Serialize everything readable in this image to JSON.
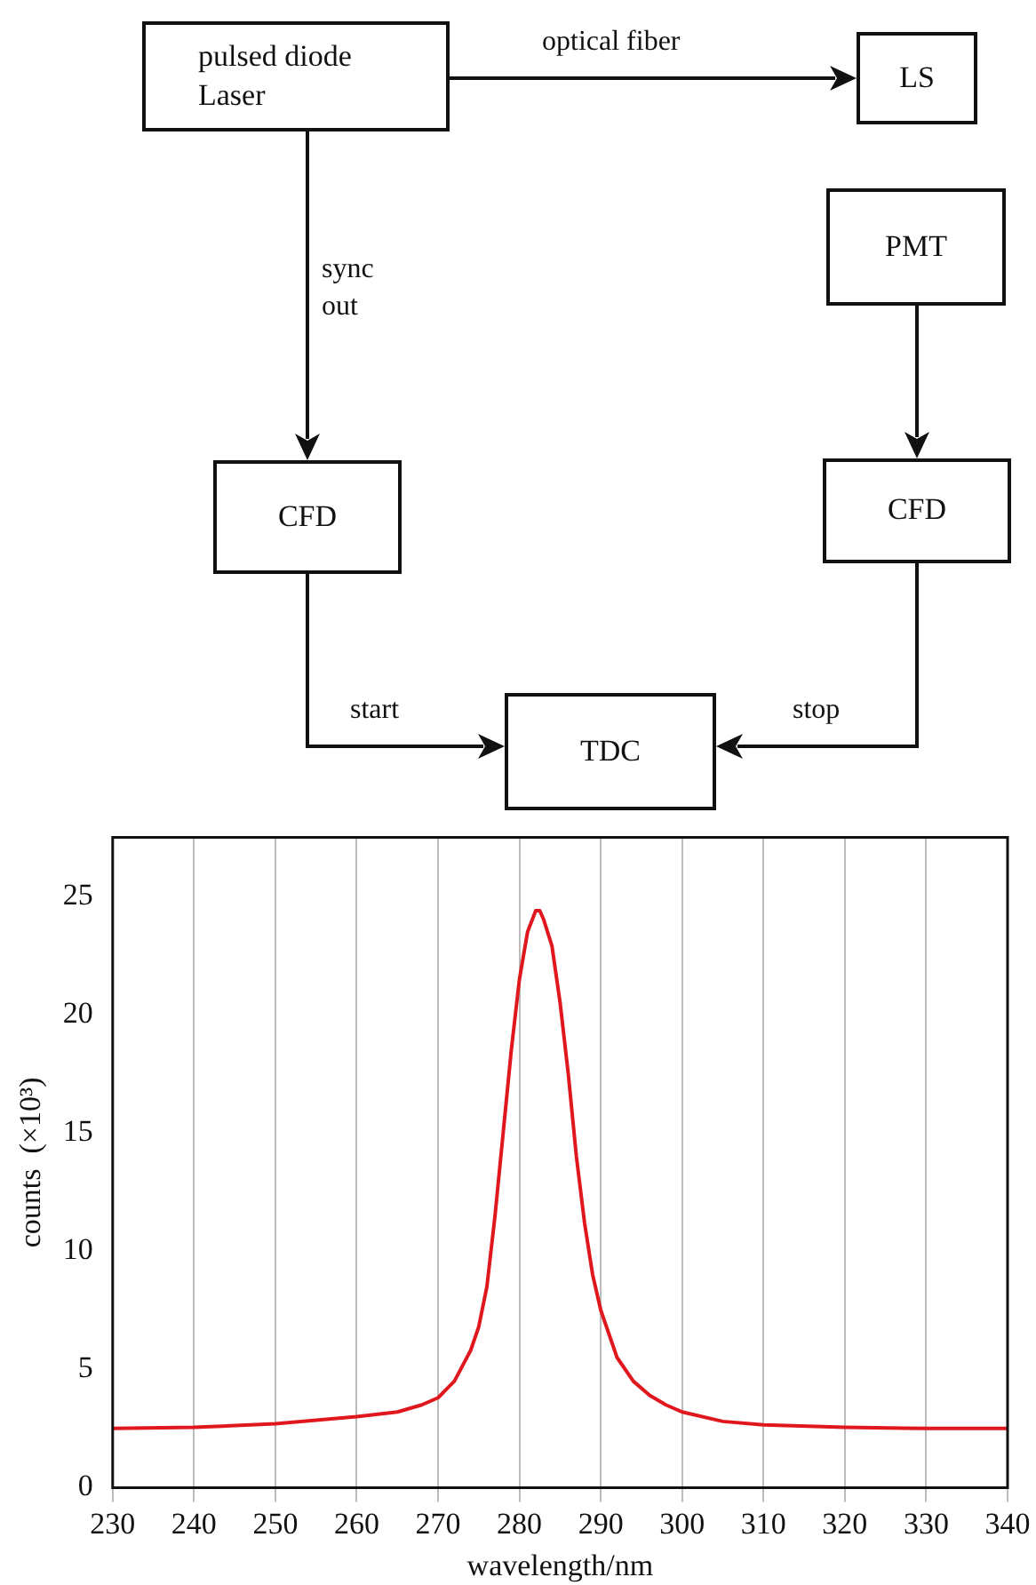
{
  "chart_data": [
    {
      "type": "other",
      "annotations": [
        "pulsed diode Laser",
        "LS",
        "PMT",
        "CFD",
        "CFD",
        "TDC",
        "optical fiber",
        "sync out",
        "start",
        "stop"
      ]
    },
    {
      "type": "line",
      "xlabel": "wavelength/nm",
      "ylabel": "counts  (×10³)",
      "x": [
        230,
        240,
        250,
        260,
        265,
        268,
        270,
        272,
        274,
        275,
        276,
        277,
        278,
        279,
        280,
        281,
        282,
        282.5,
        283,
        284,
        285,
        286,
        287,
        288,
        289,
        290,
        292,
        294,
        296,
        298,
        300,
        305,
        310,
        320,
        330,
        340
      ],
      "series": [
        {
          "color": "#e0181e",
          "values": [
            2.5,
            2.55,
            2.7,
            3.0,
            3.2,
            3.5,
            3.8,
            4.5,
            5.8,
            6.8,
            8.5,
            11.5,
            15,
            18.5,
            21.5,
            23.5,
            24.4,
            24.4,
            24,
            22.9,
            20.5,
            17.5,
            14,
            11.2,
            9,
            7.5,
            5.5,
            4.5,
            3.9,
            3.5,
            3.2,
            2.8,
            2.65,
            2.55,
            2.5,
            2.5
          ]
        }
      ],
      "xlim": [
        230,
        340
      ],
      "xticks": [
        230,
        240,
        250,
        260,
        270,
        280,
        290,
        300,
        310,
        320,
        330,
        340
      ],
      "ylim": [
        0,
        27.5
      ],
      "yticks": [
        0,
        5,
        10,
        15,
        20,
        25
      ],
      "grid": "x"
    }
  ]
}
